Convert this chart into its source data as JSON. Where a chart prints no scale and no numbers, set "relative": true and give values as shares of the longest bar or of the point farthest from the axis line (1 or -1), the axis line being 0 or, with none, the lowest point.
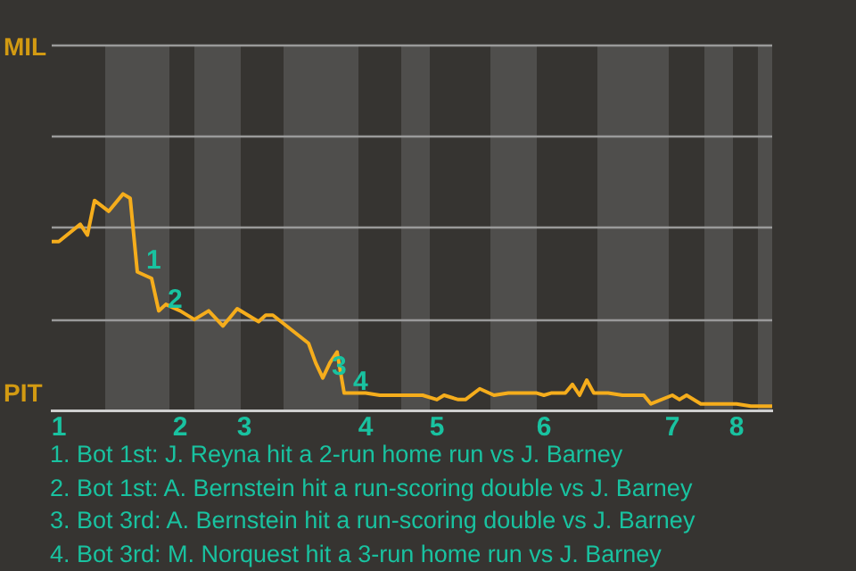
{
  "chart_data": {
    "type": "line",
    "relative": true,
    "categories": [
      null,
      "1",
      null,
      null,
      null,
      null,
      null,
      null,
      null,
      null,
      null,
      null,
      null,
      null,
      null,
      null,
      null,
      null,
      "2",
      null,
      null,
      null,
      null,
      null,
      null,
      null,
      null,
      "3",
      null,
      null,
      null,
      null,
      null,
      null,
      null,
      null,
      null,
      null,
      null,
      null,
      null,
      null,
      null,
      null,
      "4",
      null,
      null,
      null,
      null,
      null,
      null,
      null,
      null,
      null,
      "5",
      null,
      null,
      null,
      null,
      null,
      null,
      null,
      null,
      null,
      null,
      null,
      null,
      null,
      null,
      "6",
      null,
      null,
      null,
      null,
      null,
      null,
      null,
      null,
      null,
      null,
      null,
      null,
      null,
      null,
      null,
      null,
      null,
      "7",
      null,
      null,
      null,
      null,
      null,
      null,
      null,
      null,
      "8",
      null,
      null,
      null,
      null,
      null
    ],
    "marker": "none",
    "line_style": "solid",
    "ref_lines": [
      {
        "axis": "y",
        "value": 0.42,
        "color": "#9a9a9a"
      },
      {
        "axis": "y",
        "value": 0.85,
        "color": "#9a9a9a"
      },
      {
        "axis": "y",
        "value": 1.27,
        "color": "#9a9a9a"
      }
    ],
    "series": [
      {
        "color": "#f5ad1c",
        "values": [
          0.78,
          0.78,
          null,
          null,
          0.86,
          0.81,
          0.97,
          null,
          0.92,
          null,
          1,
          0.98,
          0.64,
          null,
          0.61,
          0.46,
          0.49,
          null,
          0.46,
          null,
          0.42,
          null,
          0.46,
          null,
          0.39,
          null,
          0.47,
          null,
          null,
          0.41,
          0.44,
          0.44,
          null,
          null,
          null,
          null,
          0.31,
          0.22,
          0.15,
          0.22,
          0.27,
          0.08,
          null,
          null,
          0.08,
          null,
          0.07,
          null,
          0.07,
          0.07,
          null,
          null,
          0.07,
          null,
          0.05,
          0.07,
          null,
          0.05,
          0.05,
          null,
          0.1,
          null,
          0.07,
          null,
          0.08,
          null,
          null,
          null,
          0.08,
          0.07,
          0.08,
          null,
          0.08,
          0.12,
          0.07,
          0.14,
          0.08,
          null,
          0.08,
          null,
          0.07,
          null,
          null,
          0.07,
          0.03,
          null,
          null,
          0.07,
          0.05,
          0.07,
          null,
          0.03,
          null,
          0.03,
          null,
          null,
          0.03,
          null,
          0.02,
          null,
          null,
          0.02
        ]
      }
    ],
    "annotations": [
      "MIL",
      "PIT",
      "1",
      "2",
      "3",
      "4",
      "1. Bot 1st: J. Reyna hit a 2-run home run vs J. Barney",
      "2. Bot 1st: A. Bernstein hit a run-scoring double vs J. Barney",
      "3. Bot 3rd: A. Bernstein hit a run-scoring double vs J. Barney",
      "4. Bot 3rd: M. Norquest hit a 3-run home run vs J. Barney"
    ]
  }
}
